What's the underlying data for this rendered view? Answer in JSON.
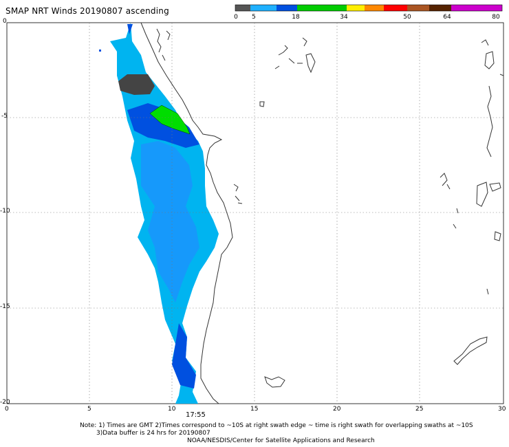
{
  "header": {
    "title": "SMAP NRT Winds 20190807 ascending"
  },
  "colorbar": {
    "labels": [
      "0",
      "5",
      "18",
      "34",
      "50",
      "64",
      "80"
    ],
    "colors": {
      "land_gap": "#555555",
      "calm": "#1e90ff",
      "light": "#0050e0",
      "moderate": "#00cc00",
      "strong": "#ffee00",
      "gale": "#ff8800",
      "storm": "#ff0000",
      "hurricane": "#cc4400",
      "extreme": "#663300",
      "max": "#cc00cc"
    }
  },
  "map": {
    "y_axis_labels": [
      "0",
      "-5",
      "-10",
      "-15",
      "-20"
    ],
    "x_axis_labels": [
      "0",
      "5",
      "10",
      "15",
      "20",
      "25",
      "30"
    ],
    "lon_range": [
      0,
      30
    ],
    "lat_range": [
      -20,
      0
    ],
    "swath_time": "17:55"
  },
  "notes": {
    "line1": "Note: 1) Times are GMT 2)Times correspond to ~10S at right swath edge ~ time is right swath for overlapping swaths at ~10S",
    "line2": "3)Data buffer is 24 hrs for 20190807",
    "line3": "NOAA/NESDIS/Center for Satellite Applications and Research"
  }
}
